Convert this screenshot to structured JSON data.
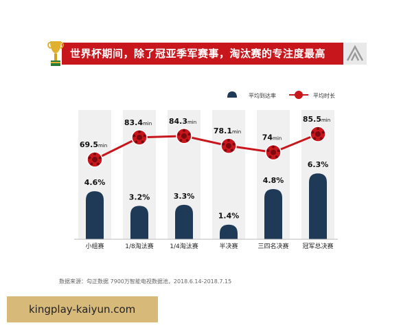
{
  "title": "世界杯期间，除了冠亚季军赛事，淘汰赛的专注度最高",
  "source": "数据来源：勾正数据 7900万智能电视数据池，2018.6.14-2018.7.15",
  "watermark": "kingplay-kaiyun.com",
  "icons": {
    "trophy": "trophy-icon",
    "logo": "brand-logo-icon",
    "ball": "soccer-ball-icon"
  },
  "colors": {
    "bar": "#1f3a57",
    "line": "#c8161d",
    "band": "#f0f0f0",
    "banner": "#c8161d",
    "watermark": "#d7b97a"
  },
  "chart_data": {
    "type": "bar",
    "categories": [
      "小组赛",
      "1/8淘汰赛",
      "1/4淘汰赛",
      "半决赛",
      "三四名决赛",
      "冠军总决赛"
    ],
    "series": [
      {
        "name": "平均到达率",
        "type": "bar",
        "values": [
          4.6,
          3.2,
          3.3,
          1.4,
          4.8,
          6.3
        ],
        "labels": [
          "4.6%",
          "3.2%",
          "3.3%",
          "1.4%",
          "4.8%",
          "6.3%"
        ]
      },
      {
        "name": "平均时长",
        "type": "line",
        "values": [
          69.5,
          83.4,
          84.3,
          78.1,
          74,
          85.5
        ],
        "labels": [
          "69.5",
          "83.4",
          "84.3",
          "78.1",
          "74",
          "85.5"
        ],
        "unit": "min"
      }
    ],
    "legend": "top-right",
    "grid": false
  }
}
